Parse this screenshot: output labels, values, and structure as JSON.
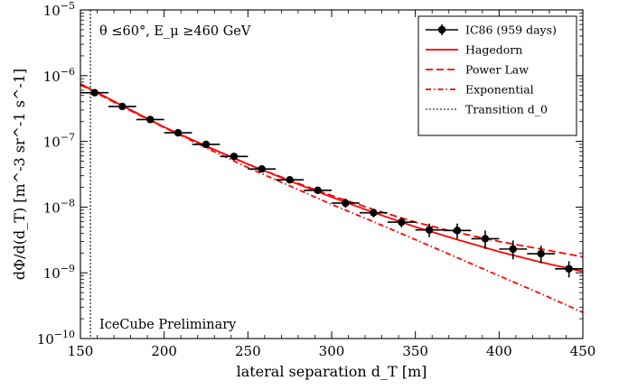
{
  "chart_data": {
    "type": "scatter",
    "xlabel": "lateral separation d_T [m]",
    "ylabel": "dΦ/d(d_T)  [m^-3 sr^-1 s^-1]",
    "xlim": [
      150,
      450
    ],
    "ylim": [
      1e-10,
      1e-05
    ],
    "y_scale": "log",
    "x_ticks": [
      "150",
      "200",
      "250",
      "300",
      "350",
      "400",
      "450"
    ],
    "y_ticks": [
      {
        "value": 1e-10,
        "exp": "−10"
      },
      {
        "value": 1e-09,
        "exp": "−9"
      },
      {
        "value": 1e-08,
        "exp": "−8"
      },
      {
        "value": 1e-07,
        "exp": "−7"
      },
      {
        "value": 1e-06,
        "exp": "−6"
      },
      {
        "value": 1e-05,
        "exp": "−5"
      }
    ],
    "grid": false,
    "legend_position": "top-right",
    "annotations": {
      "cut": "θ ≤60°, E_μ ≥460 GeV",
      "watermark": "IceCube Preliminary"
    },
    "transition_x": 156,
    "series": [
      {
        "name": "IC86 (959 days)",
        "kind": "errorbar",
        "color": "#000000",
        "x_halfwidth": 8.3,
        "x": [
          158.5,
          175,
          191.7,
          208.3,
          225,
          241.7,
          258.3,
          275,
          291.7,
          308.3,
          325,
          341.7,
          358.3,
          375,
          391.7,
          408.3,
          425,
          441.7
        ],
        "y": [
          5.5e-07,
          3.4e-07,
          2.15e-07,
          1.35e-07,
          9e-08,
          5.9e-08,
          3.8e-08,
          2.6e-08,
          1.8e-08,
          1.15e-08,
          8.2e-09,
          5.9e-09,
          4.5e-09,
          4.4e-09,
          3.3e-09,
          2.3e-09,
          1.95e-09,
          1.15e-09
        ],
        "y_low": [
          5e-07,
          3.1e-07,
          1.95e-07,
          1.23e-07,
          8.2e-08,
          5.4e-08,
          3.5e-08,
          2.4e-08,
          1.63e-08,
          9.8e-09,
          7e-09,
          4.9e-09,
          3.5e-09,
          3.3e-09,
          2.3e-09,
          1.6e-09,
          1.4e-09,
          8.5e-10
        ],
        "y_high": [
          6e-07,
          3.7e-07,
          2.35e-07,
          1.47e-07,
          9.8e-08,
          6.4e-08,
          4.1e-08,
          2.8e-08,
          1.97e-08,
          1.35e-08,
          9.4e-09,
          6.9e-09,
          5.6e-09,
          5.6e-09,
          4.4e-09,
          3.1e-09,
          2.6e-09,
          1.5e-09
        ]
      },
      {
        "name": "Hagedorn",
        "kind": "line",
        "style": "solid",
        "color": "#ff0000",
        "x": [
          150,
          175,
          200,
          225,
          250,
          275,
          300,
          325,
          350,
          375,
          400,
          425,
          450
        ],
        "y": [
          7.5e-07,
          3.5e-07,
          1.65e-07,
          8.5e-08,
          4.5e-08,
          2.5e-08,
          1.42e-08,
          8.3e-09,
          5e-09,
          3.2e-09,
          2.1e-09,
          1.45e-09,
          1.05e-09
        ]
      },
      {
        "name": "Power Law",
        "kind": "line",
        "style": "dashed",
        "color": "#ff0000",
        "x": [
          150,
          175,
          200,
          225,
          250,
          275,
          300,
          325,
          350,
          375,
          400,
          425,
          450
        ],
        "y": [
          7.3e-07,
          3.4e-07,
          1.62e-07,
          8.4e-08,
          4.5e-08,
          2.55e-08,
          1.5e-08,
          9.2e-09,
          5.9e-09,
          4.1e-09,
          3e-09,
          2.3e-09,
          1.75e-09
        ]
      },
      {
        "name": "Exponential",
        "kind": "line",
        "style": "dashdot",
        "color": "#ff0000",
        "x": [
          150,
          175,
          200,
          225,
          250,
          275,
          300,
          325,
          350,
          375,
          400,
          425,
          450
        ],
        "y": [
          7.5e-07,
          3.5e-07,
          1.65e-07,
          8e-08,
          4e-08,
          2.1e-08,
          1.1e-08,
          6e-09,
          3.2e-09,
          1.7e-09,
          9e-10,
          4.8e-10,
          2.5e-10
        ]
      },
      {
        "name": "Transition d_0",
        "kind": "vline",
        "style": "dotted",
        "color": "#555555"
      }
    ]
  }
}
